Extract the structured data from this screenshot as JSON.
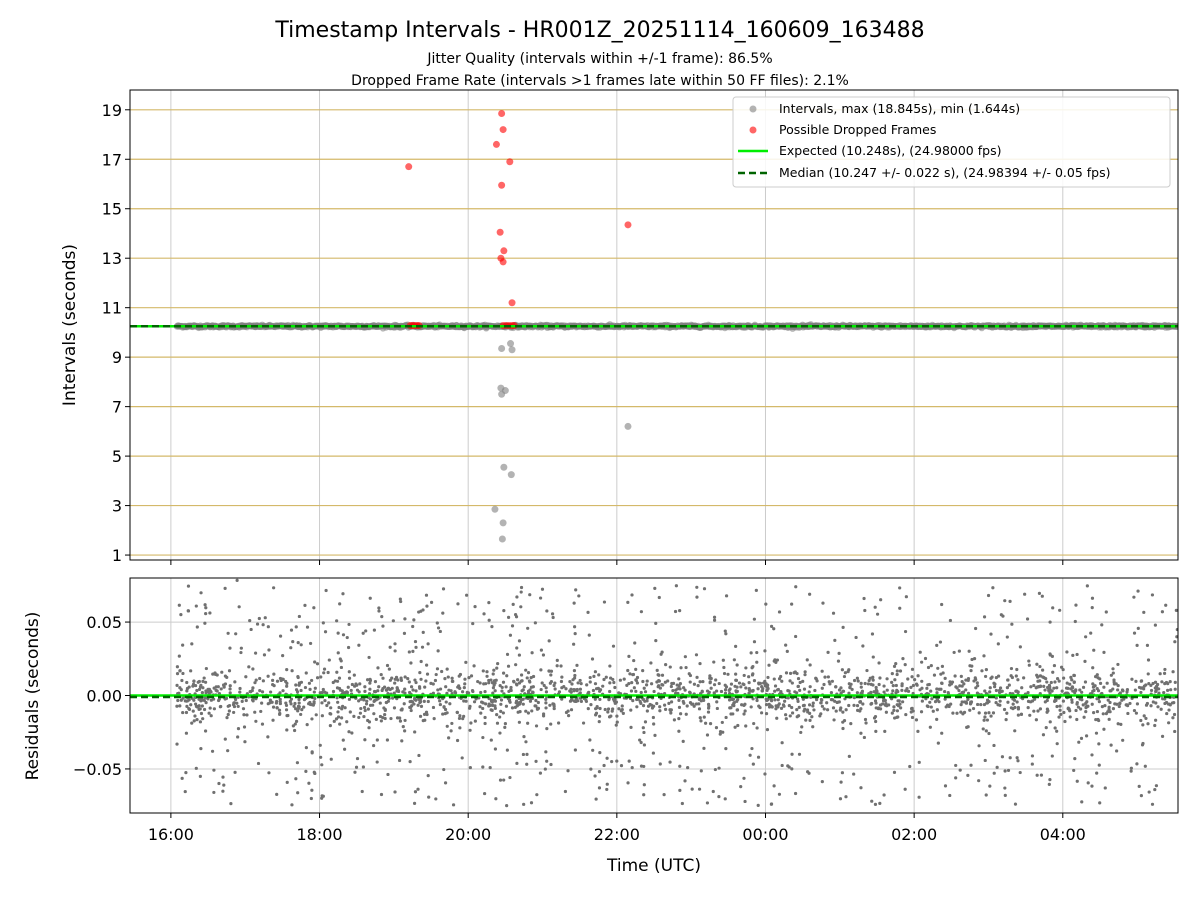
{
  "chart_data": {
    "type": "scatter",
    "title": "Timestamp Intervals - HR001Z_20251114_160609_163488",
    "subtitle_lines": [
      "Jitter Quality (intervals within +/-1 frame): 86.5%",
      "Dropped Frame Rate (intervals >1 frames late within 50 FF files): 2.1%"
    ],
    "colors": {
      "intervals": "#808080",
      "dropped": "#ff0000",
      "expected": "#00ee00",
      "median": "#006400",
      "hgrid_top": "#d4b96a",
      "grid": "#cccccc",
      "residuals": "#707070"
    },
    "top_panel": {
      "ylabel": "Intervals (seconds)",
      "ylim": [
        0.8,
        19.8
      ],
      "xlim_hours": [
        15.45,
        29.55
      ],
      "yticks": [
        1,
        3,
        5,
        7,
        9,
        11,
        13,
        15,
        17,
        19
      ],
      "tick_labels": [
        "1",
        "3",
        "5",
        "7",
        "9",
        "11",
        "13",
        "15",
        "17",
        "19"
      ],
      "expected": 10.248,
      "median": 10.247,
      "interval_band": {
        "x_start_hours": 16.08,
        "x_end_hours": 29.55,
        "y": 10.248,
        "spread": 0.07
      },
      "interval_outliers": [
        {
          "x": 20.45,
          "y": 9.35
        },
        {
          "x": 20.57,
          "y": 9.55
        },
        {
          "x": 20.59,
          "y": 9.3
        },
        {
          "x": 20.44,
          "y": 7.75
        },
        {
          "x": 20.5,
          "y": 7.65
        },
        {
          "x": 20.45,
          "y": 7.5
        },
        {
          "x": 22.15,
          "y": 6.2
        },
        {
          "x": 20.48,
          "y": 4.55
        },
        {
          "x": 20.58,
          "y": 4.25
        },
        {
          "x": 20.36,
          "y": 2.85
        },
        {
          "x": 20.47,
          "y": 2.3
        },
        {
          "x": 20.46,
          "y": 1.65
        }
      ],
      "dropped_frames": [
        {
          "x": 20.45,
          "y": 18.85
        },
        {
          "x": 20.47,
          "y": 18.2
        },
        {
          "x": 20.38,
          "y": 17.6
        },
        {
          "x": 20.56,
          "y": 16.9
        },
        {
          "x": 19.2,
          "y": 16.7
        },
        {
          "x": 20.45,
          "y": 15.95
        },
        {
          "x": 22.15,
          "y": 14.35
        },
        {
          "x": 20.43,
          "y": 14.05
        },
        {
          "x": 20.48,
          "y": 13.3
        },
        {
          "x": 20.44,
          "y": 13.0
        },
        {
          "x": 20.47,
          "y": 12.85
        },
        {
          "x": 20.59,
          "y": 11.2
        },
        {
          "x": 19.22,
          "y": 10.28
        },
        {
          "x": 19.25,
          "y": 10.28
        },
        {
          "x": 19.28,
          "y": 10.28
        },
        {
          "x": 19.31,
          "y": 10.28
        },
        {
          "x": 19.34,
          "y": 10.28
        },
        {
          "x": 20.47,
          "y": 10.28
        },
        {
          "x": 20.51,
          "y": 10.28
        },
        {
          "x": 20.55,
          "y": 10.28
        },
        {
          "x": 20.59,
          "y": 10.28
        },
        {
          "x": 20.62,
          "y": 10.28
        }
      ],
      "legend": {
        "position": "top-right",
        "entries": [
          "Intervals, max (18.845s), min (1.644s)",
          "Possible Dropped Frames",
          "Expected (10.248s), (24.98000 fps)",
          "Median (10.247 +/- 0.022 s), (24.98394 +/- 0.05 fps)"
        ]
      }
    },
    "bottom_panel": {
      "ylabel": "Residuals (seconds)",
      "xlabel": "Time (UTC)",
      "ylim": [
        -0.08,
        0.08
      ],
      "xlim_hours": [
        15.45,
        29.55
      ],
      "yticks": [
        0.05,
        0.0,
        -0.05
      ],
      "tick_labels": [
        "0.05",
        "0.00",
        "−0.05"
      ],
      "expected": 0.0,
      "median": -0.001,
      "residual_band": {
        "x_start_hours": 16.08,
        "x_end_hours": 29.55,
        "n_points": 2600,
        "typical_std": 0.02,
        "max_abs": 0.08
      }
    },
    "xticks_hours": [
      16,
      18,
      20,
      22,
      24,
      26,
      28
    ],
    "xtick_labels": [
      "16:00",
      "18:00",
      "20:00",
      "22:00",
      "00:00",
      "02:00",
      "04:00"
    ]
  }
}
